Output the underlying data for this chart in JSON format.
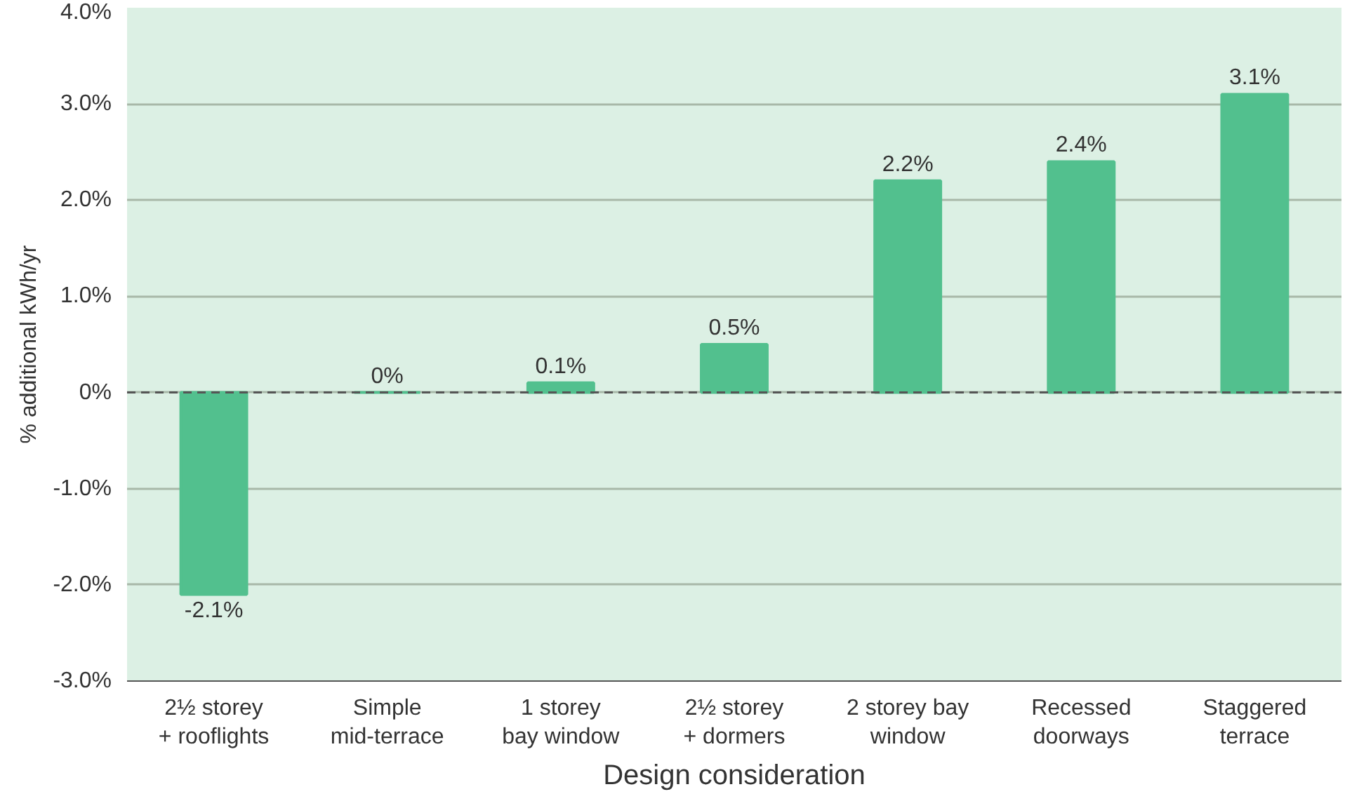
{
  "chart_data": {
    "type": "bar",
    "xlabel": "Design consideration",
    "ylabel": "% additional kWh/yr",
    "categories": [
      "2½ storey\n+ rooflights",
      "Simple\nmid-terrace",
      "1 storey\nbay window",
      "2½ storey\n+ dormers",
      "2 storey bay\nwindow",
      "Recessed\ndoorways",
      "Staggered\nterrace"
    ],
    "values": [
      -2.1,
      0,
      0.1,
      0.5,
      2.2,
      2.4,
      3.1
    ],
    "value_labels": [
      "-2.1%",
      "0%",
      "0.1%",
      "0.5%",
      "2.2%",
      "2.4%",
      "3.1%"
    ],
    "color": "#52c08e",
    "ylim": [
      -3,
      4
    ],
    "yticks": [
      {
        "value": -3,
        "label": "-3.0%"
      },
      {
        "value": -2,
        "label": "-2.0%"
      },
      {
        "value": -1,
        "label": "-1.0%"
      },
      {
        "value": 0,
        "label": "0%"
      },
      {
        "value": 1,
        "label": "1.0%"
      },
      {
        "value": 2,
        "label": "2.0%"
      },
      {
        "value": 3,
        "label": "3.0%"
      },
      {
        "value": 4,
        "label": "4.0%"
      }
    ],
    "grid": "y",
    "ref_lines": [
      {
        "axis": "y",
        "value": 0,
        "color": "#555555",
        "line_style": "dashed"
      }
    ]
  }
}
